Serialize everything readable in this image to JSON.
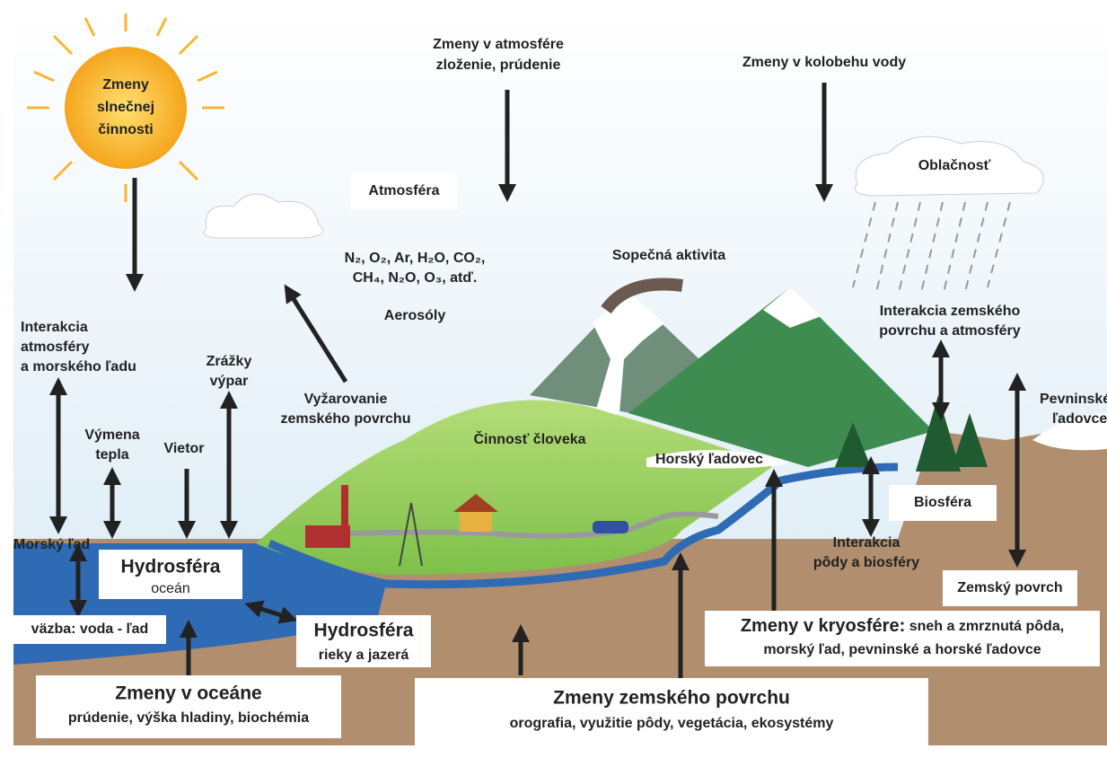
{
  "sun": {
    "lines": [
      "Zmeny",
      "slnečnej",
      "činnosti"
    ]
  },
  "atmosphere_changes": {
    "title": "Zmeny v atmosfére",
    "subtitle": "zloženie, prúdenie"
  },
  "water_cycle_changes": "Zmeny v kolobehu vody",
  "clouds": "Oblačnosť",
  "atmosphere": "Atmosféra",
  "gases": [
    "N₂, O₂, Ar, H₂O, CO₂,",
    "CH₄, N₂O, O₃, atď."
  ],
  "volcanic_activity": "Sopečná aktivita",
  "aerosols": "Aerosóly",
  "atmosphere_sea_ice": [
    "Interakcia",
    "atmosféry",
    "a morského ľadu"
  ],
  "precipitation": [
    "Zrážky",
    "výpar"
  ],
  "heat_exchange": [
    "Výmena",
    "tepla"
  ],
  "wind": "Vietor",
  "surface_radiation": [
    "Vyžarovanie",
    "zemského povrchu"
  ],
  "surface_atmosphere": [
    "Interakcia zemského",
    "povrchu a atmosféry"
  ],
  "ice_sheets": [
    "Pevninské",
    "ľadovce"
  ],
  "human_activity": "Činnosť človeka",
  "glacier": "Horský ľadovec",
  "biosphere": "Biosféra",
  "sea_ice": "Morský ľad",
  "hydrosphere_ocean": {
    "title": "Hydrosféra",
    "subtitle": "oceán"
  },
  "soil_biosphere": [
    "Interakcia",
    "pôdy a biosféry"
  ],
  "land_surface": "Zemský povrch",
  "water_ice": "väzba: voda - ľad",
  "hydrosphere_rivers": {
    "title": "Hydrosféra",
    "subtitle": "rieky a jazerá"
  },
  "cryosphere_changes": {
    "title": "Zmeny v kryosfére:",
    "line1": "sneh a zmrznutá pôda,",
    "line2": "morský ľad, pevninské a horské ľadovce"
  },
  "ocean_changes": {
    "title": "Zmeny v oceáne",
    "subtitle": "prúdenie, výška hladiny, biochémia"
  },
  "land_changes": {
    "title": "Zmeny zemského povrchu",
    "subtitle": "orografia, využitie pôdy, vegetácia, ekosystémy"
  }
}
